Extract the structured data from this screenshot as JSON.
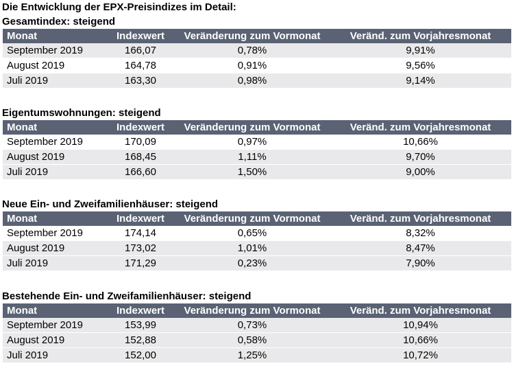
{
  "heading": "Die Entwicklung der EPX-Preisindizes im Detail:",
  "columns": {
    "month": "Monat",
    "index": "Indexwert",
    "mom": "Veränderung zum Vormonat",
    "yoy": "Veränd. zum Vorjahresmonat"
  },
  "sections": [
    {
      "title": "Gesamtindex: steigend",
      "rows": [
        {
          "month": "September 2019",
          "index": "166,07",
          "mom": "0,78%",
          "yoy": "9,91%"
        },
        {
          "month": "August 2019",
          "index": "164,78",
          "mom": "0,91%",
          "yoy": "9,56%"
        },
        {
          "month": "Juli 2019",
          "index": "163,30",
          "mom": "0,98%",
          "yoy": "9,14%"
        }
      ]
    },
    {
      "title": "Eigentumswohnungen: steigend",
      "rows": [
        {
          "month": "September 2019",
          "index": "170,09",
          "mom": "0,97%",
          "yoy": "10,66%"
        },
        {
          "month": "August 2019",
          "index": "168,45",
          "mom": "1,11%",
          "yoy": "9,70%"
        },
        {
          "month": "Juli 2019",
          "index": "166,60",
          "mom": "1,50%",
          "yoy": "9,00%"
        }
      ]
    },
    {
      "title": "Neue Ein- und Zweifamilienhäuser: steigend",
      "rows": [
        {
          "month": "September 2019",
          "index": "174,14",
          "mom": "0,65%",
          "yoy": "8,32%"
        },
        {
          "month": "August 2019",
          "index": "173,02",
          "mom": "1,01%",
          "yoy": "8,47%"
        },
        {
          "month": "Juli 2019",
          "index": "171,29",
          "mom": "0,23%",
          "yoy": "7,90%"
        }
      ]
    },
    {
      "title": "Bestehende Ein- und Zweifamilienhäuser: steigend",
      "rows": [
        {
          "month": "September 2019",
          "index": "153,99",
          "mom": "0,73%",
          "yoy": "10,94%"
        },
        {
          "month": "August 2019",
          "index": "152,88",
          "mom": "0,58%",
          "yoy": "10,66%"
        },
        {
          "month": "Juli 2019",
          "index": "152,00",
          "mom": "1,25%",
          "yoy": "10,72%"
        }
      ]
    }
  ],
  "colors": {
    "header_bg": "#5a6274",
    "header_text": "#ffffff",
    "stripe_bg": "#e9e9eb"
  }
}
